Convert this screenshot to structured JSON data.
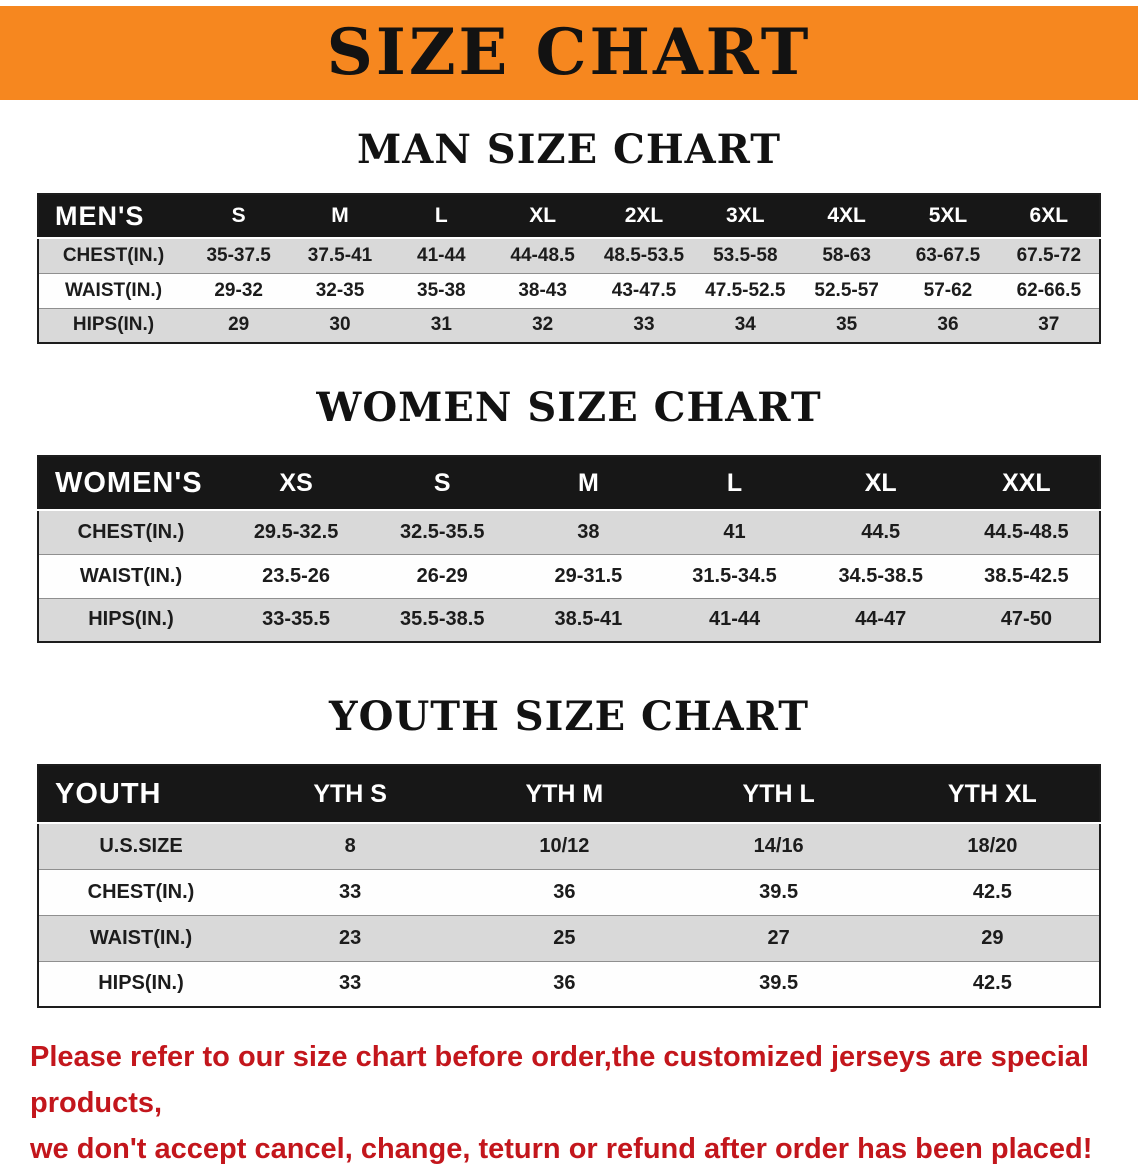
{
  "banner": {
    "title": "SIZE CHART",
    "bg_color": "#f6871f",
    "text_color": "#121212"
  },
  "tables": [
    {
      "id": "men",
      "heading": "MAN SIZE CHART",
      "group_label": "MEN'S",
      "columns": [
        "S",
        "M",
        "L",
        "XL",
        "2XL",
        "3XL",
        "4XL",
        "5XL",
        "6XL"
      ],
      "rows": [
        {
          "label": "CHEST(IN.)",
          "values": [
            "35-37.5",
            "37.5-41",
            "41-44",
            "44-48.5",
            "48.5-53.5",
            "53.5-58",
            "58-63",
            "63-67.5",
            "67.5-72"
          ]
        },
        {
          "label": "WAIST(IN.)",
          "values": [
            "29-32",
            "32-35",
            "35-38",
            "38-43",
            "43-47.5",
            "47.5-52.5",
            "52.5-57",
            "57-62",
            "62-66.5"
          ]
        },
        {
          "label": "HIPS(IN.)",
          "values": [
            "29",
            "30",
            "31",
            "32",
            "33",
            "34",
            "35",
            "36",
            "37"
          ]
        }
      ]
    },
    {
      "id": "women",
      "heading": "WOMEN SIZE CHART",
      "group_label": "WOMEN'S",
      "columns": [
        "XS",
        "S",
        "M",
        "L",
        "XL",
        "XXL"
      ],
      "rows": [
        {
          "label": "CHEST(IN.)",
          "values": [
            "29.5-32.5",
            "32.5-35.5",
            "38",
            "41",
            "44.5",
            "44.5-48.5"
          ]
        },
        {
          "label": "WAIST(IN.)",
          "values": [
            "23.5-26",
            "26-29",
            "29-31.5",
            "31.5-34.5",
            "34.5-38.5",
            "38.5-42.5"
          ]
        },
        {
          "label": "HIPS(IN.)",
          "values": [
            "33-35.5",
            "35.5-38.5",
            "38.5-41",
            "41-44",
            "44-47",
            "47-50"
          ]
        }
      ]
    },
    {
      "id": "youth",
      "heading": "YOUTH SIZE CHART",
      "group_label": "YOUTH",
      "columns": [
        "YTH S",
        "YTH M",
        "YTH L",
        "YTH XL"
      ],
      "rows": [
        {
          "label": "U.S.SIZE",
          "values": [
            "8",
            "10/12",
            "14/16",
            "18/20"
          ]
        },
        {
          "label": "CHEST(IN.)",
          "values": [
            "33",
            "36",
            "39.5",
            "42.5"
          ]
        },
        {
          "label": "WAIST(IN.)",
          "values": [
            "23",
            "25",
            "27",
            "29"
          ]
        },
        {
          "label": "HIPS(IN.)",
          "values": [
            "33",
            "36",
            "39.5",
            "42.5"
          ]
        }
      ]
    }
  ],
  "footer_note": {
    "line1": "Please refer to our size chart before order,the customized jerseys are special products,",
    "line2": "we don't accept cancel, change, teturn or refund after order has been placed!",
    "text_color": "#c3161c"
  }
}
